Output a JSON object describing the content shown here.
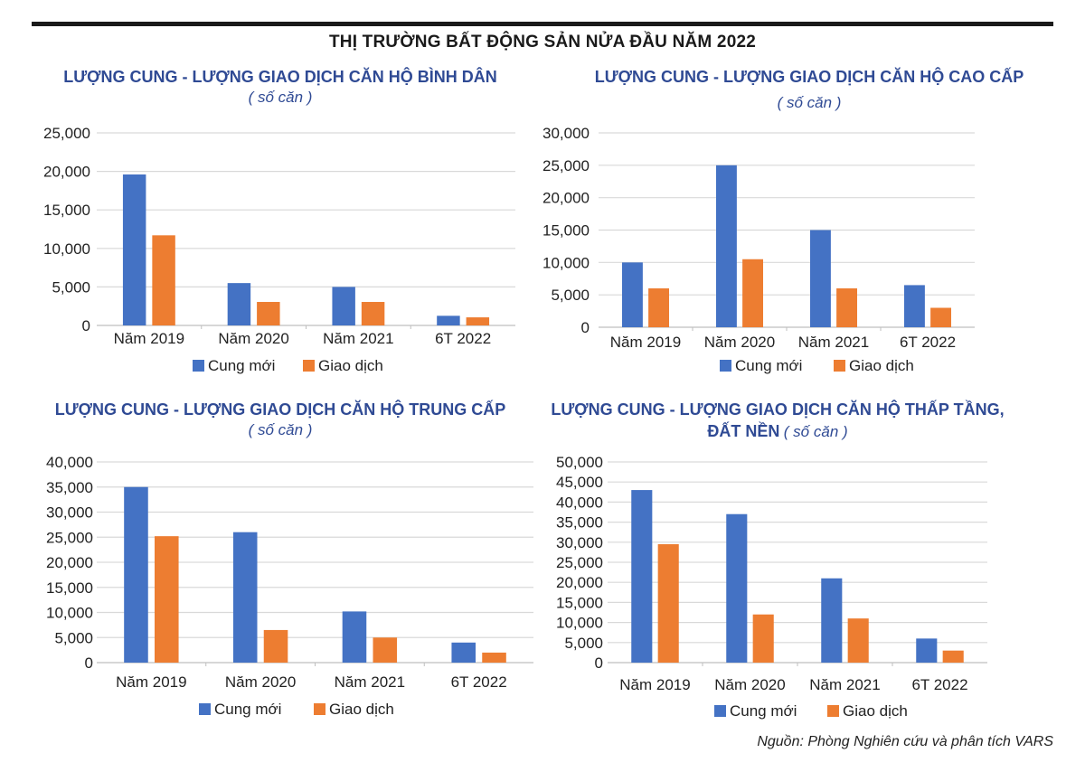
{
  "page": {
    "main_title": "THỊ TRƯỜNG BẤT ĐỘNG SẢN NỬA ĐẦU NĂM 2022",
    "source": "Nguồn: Phòng Nghiên cứu và phân tích VARS",
    "colors": {
      "cung_moi": "#4472C4",
      "giao_dich": "#ED7D31",
      "title": "#2F4A94",
      "grid": "#D9D9D9"
    }
  },
  "panels": [
    {
      "title_line1": "LƯỢNG CUNG - LƯỢNG GIAO DỊCH CĂN HỘ BÌNH DÂN",
      "title_line2": "",
      "unit": "( số căn )"
    },
    {
      "title_line1": "LƯỢNG CUNG - LƯỢNG GIAO DỊCH CĂN HỘ CAO CẤP",
      "title_line2": "",
      "unit": "( số căn )"
    },
    {
      "title_line1": "LƯỢNG CUNG - LƯỢNG GIAO DỊCH CĂN HỘ TRUNG CẤP",
      "title_line2": "",
      "unit": "( số căn )"
    },
    {
      "title_line1": "LƯỢNG CUNG - LƯỢNG GIAO DỊCH CĂN HỘ THẤP TẦNG,",
      "title_line2": "ĐẤT NỀN",
      "unit": "( số căn )"
    }
  ],
  "chart_data": [
    {
      "type": "bar",
      "title": "LƯỢNG CUNG - LƯỢNG GIAO DỊCH CĂN HỘ BÌNH DÂN ( số căn )",
      "categories": [
        "Năm 2019",
        "Năm 2020",
        "Năm 2021",
        "6T 2022"
      ],
      "series": [
        {
          "name": "Cung mới",
          "values": [
            19600,
            5500,
            5000,
            1250
          ]
        },
        {
          "name": "Giao dịch",
          "values": [
            11700,
            3050,
            3050,
            1050
          ]
        }
      ],
      "ylim": [
        0,
        25000
      ],
      "yticks": [
        0,
        5000,
        10000,
        15000,
        20000,
        25000
      ],
      "ytick_labels": [
        "0",
        "5,000",
        "10,000",
        "15,000",
        "20,000",
        "25,000"
      ],
      "xlabel": "",
      "ylabel": "",
      "grid": true,
      "legend": "bottom"
    },
    {
      "type": "bar",
      "title": "LƯỢNG CUNG - LƯỢNG GIAO DỊCH CĂN HỘ CAO CẤP ( số căn )",
      "categories": [
        "Năm 2019",
        "Năm 2020",
        "Năm 2021",
        "6T 2022"
      ],
      "series": [
        {
          "name": "Cung mới",
          "values": [
            10000,
            25000,
            15000,
            6500
          ]
        },
        {
          "name": "Giao dịch",
          "values": [
            6000,
            10500,
            6000,
            3000
          ]
        }
      ],
      "ylim": [
        0,
        30000
      ],
      "yticks": [
        0,
        5000,
        10000,
        15000,
        20000,
        25000,
        30000
      ],
      "ytick_labels": [
        "0",
        "5,000",
        "10,000",
        "15,000",
        "20,000",
        "25,000",
        "30,000"
      ],
      "xlabel": "",
      "ylabel": "",
      "grid": true,
      "legend": "bottom"
    },
    {
      "type": "bar",
      "title": "LƯỢNG CUNG - LƯỢNG GIAO DỊCH CĂN HỘ TRUNG CẤP ( số căn )",
      "categories": [
        "Năm 2019",
        "Năm 2020",
        "Năm 2021",
        "6T 2022"
      ],
      "series": [
        {
          "name": "Cung mới",
          "values": [
            35000,
            26000,
            10200,
            4000
          ]
        },
        {
          "name": "Giao dịch",
          "values": [
            25200,
            6500,
            5000,
            2000
          ]
        }
      ],
      "ylim": [
        0,
        40000
      ],
      "yticks": [
        0,
        5000,
        10000,
        15000,
        20000,
        25000,
        30000,
        35000,
        40000
      ],
      "ytick_labels": [
        "0",
        "5,000",
        "10,000",
        "15,000",
        "20,000",
        "25,000",
        "30,000",
        "35,000",
        "40,000"
      ],
      "xlabel": "",
      "ylabel": "",
      "grid": true,
      "legend": "bottom"
    },
    {
      "type": "bar",
      "title": "LƯỢNG CUNG - LƯỢNG GIAO DỊCH CĂN HỘ THẤP TẦNG, ĐẤT NỀN ( số căn )",
      "categories": [
        "Năm 2019",
        "Năm 2020",
        "Năm 2021",
        "6T 2022"
      ],
      "series": [
        {
          "name": "Cung mới",
          "values": [
            43000,
            37000,
            21000,
            6000
          ]
        },
        {
          "name": "Giao dịch",
          "values": [
            29500,
            12000,
            11000,
            3000
          ]
        }
      ],
      "ylim": [
        0,
        50000
      ],
      "yticks": [
        0,
        5000,
        10000,
        15000,
        20000,
        25000,
        30000,
        35000,
        40000,
        45000,
        50000
      ],
      "ytick_labels": [
        "0",
        "5,000",
        "10,000",
        "15,000",
        "20,000",
        "25,000",
        "30,000",
        "35,000",
        "40,000",
        "45,000",
        "50,000"
      ],
      "xlabel": "",
      "ylabel": "",
      "grid": true,
      "legend": "bottom"
    }
  ]
}
